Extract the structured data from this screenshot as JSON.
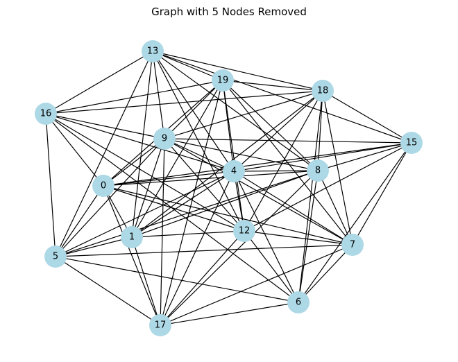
{
  "title": "Graph with 5 Nodes Removed",
  "style": {
    "node_color": "#add8e6",
    "edge_color": "#000000"
  },
  "nodes": [
    {
      "id": "0"
    },
    {
      "id": "1"
    },
    {
      "id": "4"
    },
    {
      "id": "5"
    },
    {
      "id": "6"
    },
    {
      "id": "7"
    },
    {
      "id": "8"
    },
    {
      "id": "9"
    },
    {
      "id": "12"
    },
    {
      "id": "13"
    },
    {
      "id": "15"
    },
    {
      "id": "16"
    },
    {
      "id": "17"
    },
    {
      "id": "18"
    },
    {
      "id": "19"
    }
  ],
  "edges": [
    [
      "13",
      "19"
    ],
    [
      "13",
      "18"
    ],
    [
      "13",
      "16"
    ],
    [
      "13",
      "9"
    ],
    [
      "13",
      "1"
    ],
    [
      "13",
      "5"
    ],
    [
      "13",
      "4"
    ],
    [
      "13",
      "8"
    ],
    [
      "13",
      "12"
    ],
    [
      "13",
      "15"
    ],
    [
      "19",
      "18"
    ],
    [
      "19",
      "16"
    ],
    [
      "19",
      "9"
    ],
    [
      "19",
      "0"
    ],
    [
      "19",
      "4"
    ],
    [
      "19",
      "8"
    ],
    [
      "19",
      "7"
    ],
    [
      "19",
      "12"
    ],
    [
      "19",
      "17"
    ],
    [
      "19",
      "1"
    ],
    [
      "18",
      "16"
    ],
    [
      "18",
      "9"
    ],
    [
      "18",
      "4"
    ],
    [
      "18",
      "8"
    ],
    [
      "18",
      "12"
    ],
    [
      "18",
      "6"
    ],
    [
      "18",
      "7"
    ],
    [
      "18",
      "15"
    ],
    [
      "18",
      "1"
    ],
    [
      "16",
      "9"
    ],
    [
      "16",
      "4"
    ],
    [
      "16",
      "5"
    ],
    [
      "16",
      "0"
    ],
    [
      "16",
      "12"
    ],
    [
      "16",
      "6"
    ],
    [
      "9",
      "15"
    ],
    [
      "9",
      "4"
    ],
    [
      "9",
      "8"
    ],
    [
      "9",
      "0"
    ],
    [
      "9",
      "1"
    ],
    [
      "9",
      "17"
    ],
    [
      "9",
      "12"
    ],
    [
      "9",
      "7"
    ],
    [
      "9",
      "5"
    ],
    [
      "15",
      "4"
    ],
    [
      "15",
      "8"
    ],
    [
      "15",
      "0"
    ],
    [
      "15",
      "12"
    ],
    [
      "15",
      "7"
    ],
    [
      "15",
      "6"
    ],
    [
      "4",
      "8"
    ],
    [
      "4",
      "0"
    ],
    [
      "4",
      "1"
    ],
    [
      "4",
      "5"
    ],
    [
      "4",
      "12"
    ],
    [
      "4",
      "7"
    ],
    [
      "4",
      "6"
    ],
    [
      "4",
      "17"
    ],
    [
      "8",
      "0"
    ],
    [
      "8",
      "1"
    ],
    [
      "8",
      "5"
    ],
    [
      "8",
      "7"
    ],
    [
      "8",
      "6"
    ],
    [
      "8",
      "17"
    ],
    [
      "0",
      "12"
    ],
    [
      "0",
      "7"
    ],
    [
      "0",
      "1"
    ],
    [
      "0",
      "17"
    ],
    [
      "0",
      "5"
    ],
    [
      "1",
      "12"
    ],
    [
      "1",
      "5"
    ],
    [
      "1",
      "17"
    ],
    [
      "12",
      "7"
    ],
    [
      "12",
      "6"
    ],
    [
      "12",
      "17"
    ],
    [
      "5",
      "7"
    ],
    [
      "5",
      "6"
    ],
    [
      "5",
      "17"
    ],
    [
      "7",
      "6"
    ],
    [
      "7",
      "17"
    ],
    [
      "6",
      "17"
    ]
  ]
}
